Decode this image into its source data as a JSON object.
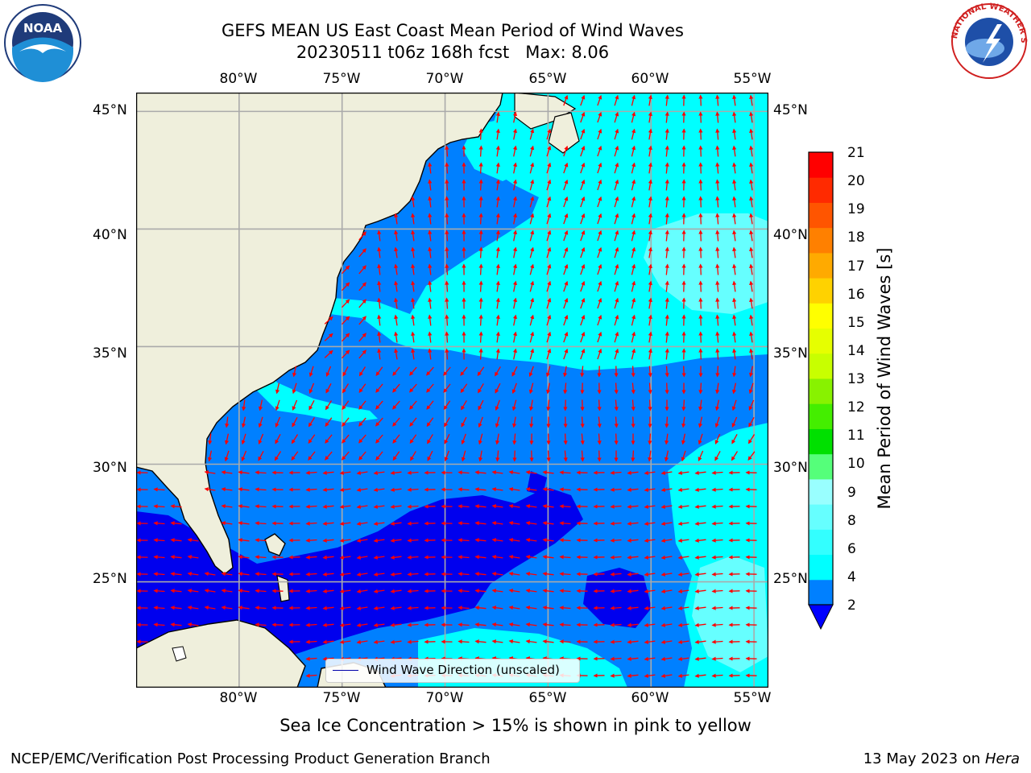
{
  "title": {
    "line1": "GEFS MEAN US East Coast Mean Period of Wind Waves",
    "line2": "20230511 t06z 168h fcst   Max: 8.06"
  },
  "map": {
    "lon_labels": [
      "80°W",
      "75°W",
      "70°W",
      "65°W",
      "60°W",
      "55°W"
    ],
    "lat_labels": [
      "45°N",
      "40°N",
      "35°N",
      "30°N",
      "25°N"
    ],
    "extent": {
      "lon_min": -85,
      "lon_max": -54.3,
      "lat_min": 20.5,
      "lat_max": 45.8
    },
    "grid_lons": [
      -80,
      -75,
      -70,
      -65,
      -60,
      -55
    ],
    "grid_lats": [
      45,
      40,
      35,
      30,
      25
    ],
    "land_color": "#efefdc",
    "arrow_color": "#ff0000",
    "legend_label": "Wind Wave Direction (unscaled)"
  },
  "colorbar": {
    "label": "Mean Period of Wind Waves [s]",
    "ticks": [
      "21",
      "20",
      "19",
      "18",
      "17",
      "16",
      "15",
      "14",
      "13",
      "12",
      "11",
      "10",
      "9",
      "8",
      "6",
      "4",
      "2"
    ],
    "under_color": "#0000ff",
    "colors": [
      "#0080ff",
      "#00ffff",
      "#33ffff",
      "#66ffff",
      "#99ffff",
      "#55ff7a",
      "#00e000",
      "#44ee00",
      "#88f200",
      "#c8ff00",
      "#e6ff00",
      "#ffff00",
      "#ffd200",
      "#ffaa00",
      "#ff8000",
      "#ff5500",
      "#ff2a00",
      "#ff0000"
    ]
  },
  "footer": {
    "caption": "Sea Ice Concentration > 15% is shown in pink to yellow",
    "credit": "NCEP/EMC/Verification Post Processing Product Generation Branch",
    "date": "13 May 2023 on",
    "machine": "Hera"
  },
  "logos": {
    "noaa_text": "NOAA",
    "nws_text": "NATIONAL WEATHER SERVICE"
  }
}
